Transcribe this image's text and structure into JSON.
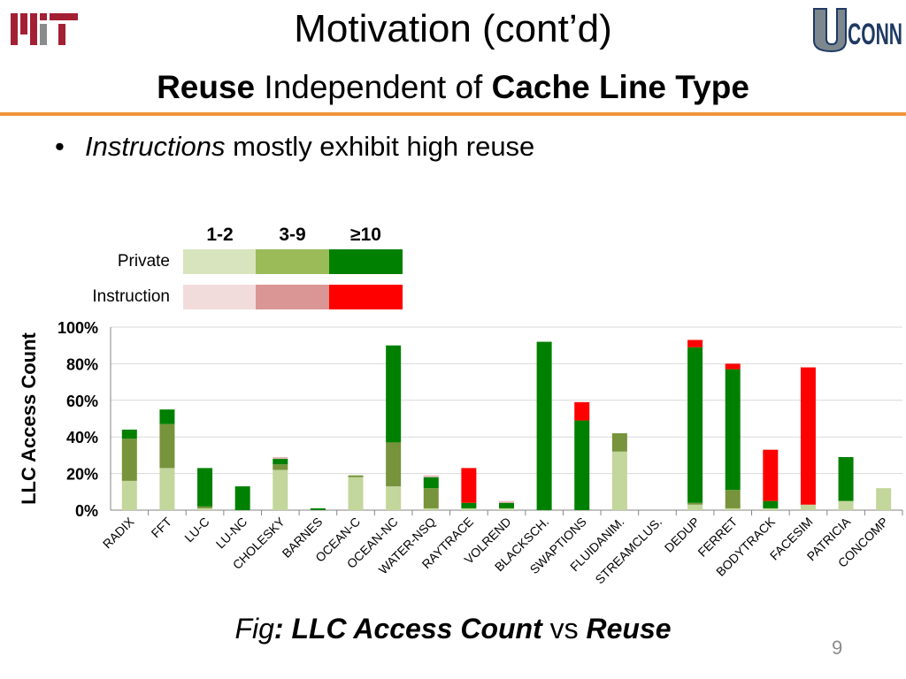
{
  "header": {
    "title": "Motivation (cont’d)",
    "subtitle_bold1": "Reuse",
    "subtitle_mid": " Independent of ",
    "subtitle_bold2": "Cache Line Type",
    "logos": [
      "MIT",
      "UCONN"
    ]
  },
  "bullet": {
    "icon": "bullet-icon",
    "italic": "Instructions",
    "rest": " mostly exhibit high reuse"
  },
  "legend": {
    "columns": [
      "1-2",
      "3-9",
      "≥10"
    ],
    "rows": [
      {
        "label": "Private",
        "colors": [
          "#d7e4bd",
          "#9bbb59",
          "#008000"
        ]
      },
      {
        "label": "Instruction",
        "colors": [
          "#f2dcdb",
          "#d99694",
          "#ff0000"
        ]
      }
    ]
  },
  "chart_data": {
    "type": "bar",
    "stacked": true,
    "ylabel": "LLC Access Count",
    "ylim": [
      0,
      100
    ],
    "yticks": [
      "0%",
      "20%",
      "40%",
      "60%",
      "80%",
      "100%"
    ],
    "grid": true,
    "categories": [
      "RADIX",
      "FFT",
      "LU-C",
      "LU-NC",
      "CHOLESKY",
      "BARNES",
      "OCEAN-C",
      "OCEAN-NC",
      "WATER-NSQ",
      "RAYTRACE",
      "VOLREND",
      "BLACKSCH.",
      "SWAPTIONS",
      "FLUIDANIM.",
      "STREAMCLUS.",
      "DEDUP",
      "FERRET",
      "BODYTRACK",
      "FACESIM",
      "PATRICIA",
      "CONCOMP"
    ],
    "series": [
      {
        "group": "Private",
        "reuse": "1-2",
        "color": "#c3d69b",
        "values": [
          16,
          23,
          1,
          0,
          22,
          0,
          18,
          13,
          1,
          1,
          1,
          0,
          0,
          32,
          0,
          3,
          1,
          1,
          3,
          5,
          12
        ]
      },
      {
        "group": "Private",
        "reuse": "3-9",
        "color": "#77933c",
        "values": [
          23,
          24,
          1,
          0,
          3,
          0,
          1,
          24,
          11,
          0,
          0,
          0,
          0,
          10,
          0,
          1,
          10,
          0,
          0,
          0,
          0
        ]
      },
      {
        "group": "Private",
        "reuse": "≥10",
        "color": "#008000",
        "values": [
          5,
          8,
          21,
          13,
          3,
          1,
          0,
          53,
          6,
          3,
          3,
          92,
          49,
          0,
          0,
          85,
          66,
          4,
          0,
          24,
          0
        ]
      },
      {
        "group": "Instruction",
        "reuse": "1-2",
        "color": "#f2dcdb",
        "values": [
          0,
          0,
          0,
          0,
          0,
          0,
          0,
          0,
          0,
          0,
          0,
          0,
          0,
          0,
          0,
          0,
          0,
          0,
          0,
          0,
          0
        ]
      },
      {
        "group": "Instruction",
        "reuse": "3-9",
        "color": "#e6b9b8",
        "values": [
          0,
          0,
          0,
          0,
          1,
          0,
          0,
          0,
          1,
          0,
          1,
          0,
          0,
          0,
          0,
          0,
          0,
          0,
          0,
          0,
          0
        ]
      },
      {
        "group": "Instruction",
        "reuse": "≥10",
        "color": "#ff0000",
        "values": [
          0,
          0,
          0,
          0,
          0,
          0,
          0,
          0,
          0,
          19,
          0,
          0,
          10,
          0,
          0,
          4,
          3,
          28,
          75,
          0,
          0
        ]
      }
    ]
  },
  "caption": {
    "prefix": "Fig",
    "bold_italic1": ": LLC Access Count",
    "mid": " vs ",
    "bold_italic2": "Reuse"
  },
  "page_number": "9"
}
